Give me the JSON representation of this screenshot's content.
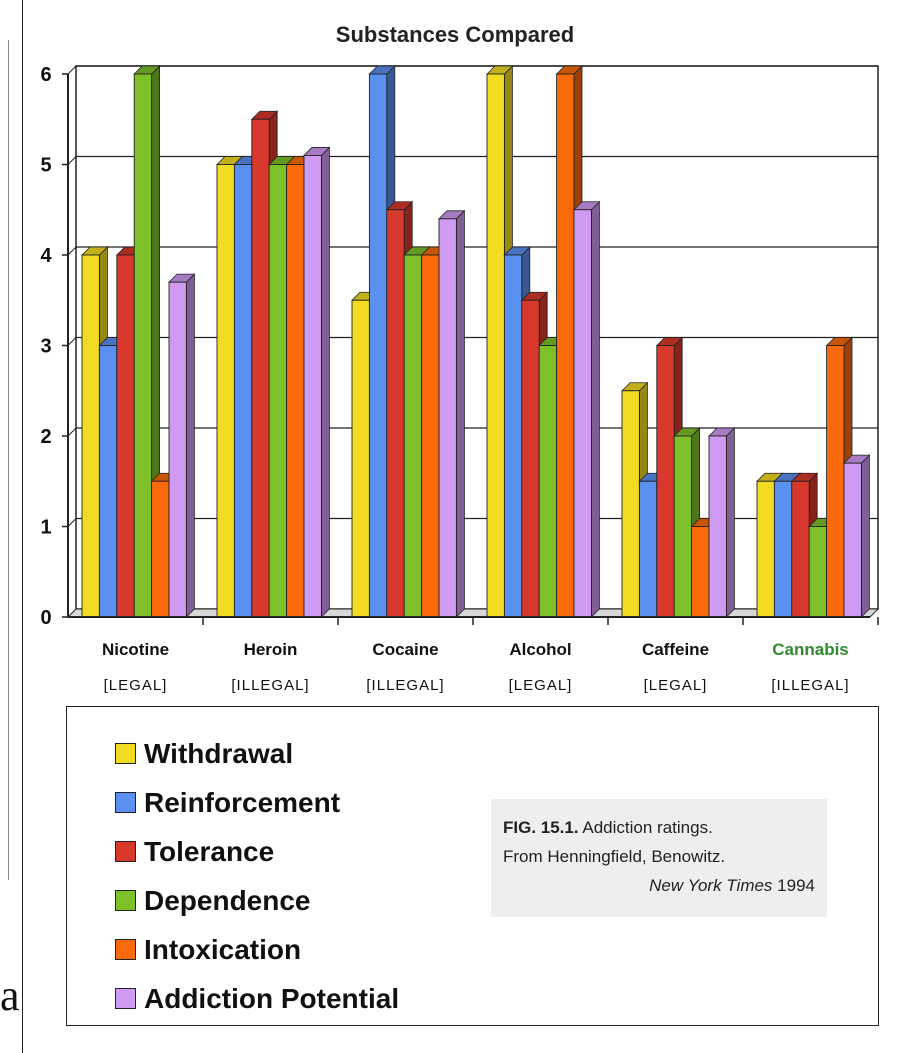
{
  "chart_data": {
    "type": "bar",
    "title": "Substances Compared",
    "xlabel": "",
    "ylabel": "",
    "ylim": [
      0,
      6
    ],
    "yticks": [
      "0",
      "1",
      "2",
      "3",
      "4",
      "5",
      "6"
    ],
    "grid": true,
    "categories": [
      "Nicotine",
      "Heroin",
      "Cocaine",
      "Alcohol",
      "Caffeine",
      "Cannabis"
    ],
    "category_status": [
      "[LEGAL]",
      "[ILLEGAL]",
      "[ILLEGAL]",
      "[LEGAL]",
      "[LEGAL]",
      "[ILLEGAL]"
    ],
    "category_colors": [
      "#111111",
      "#111111",
      "#111111",
      "#111111",
      "#111111",
      "#2e8b2e"
    ],
    "series": [
      {
        "name": "Withdrawal",
        "color": "#f2dc22",
        "values": [
          4,
          5,
          3.5,
          6,
          2.5,
          1.5
        ]
      },
      {
        "name": "Reinforcement",
        "color": "#5b8ff0",
        "values": [
          3,
          5,
          6,
          4,
          1.5,
          1.5
        ]
      },
      {
        "name": "Tolerance",
        "color": "#d9382c",
        "values": [
          4,
          5.5,
          4.5,
          3.5,
          3,
          1.5
        ]
      },
      {
        "name": "Dependence",
        "color": "#7ec02a",
        "values": [
          6,
          5,
          4,
          3,
          2,
          1
        ]
      },
      {
        "name": "Intoxication",
        "color": "#fb6a0a",
        "values": [
          1.5,
          5,
          4,
          6,
          1,
          3
        ]
      },
      {
        "name": "Addiction Potential",
        "color": "#cf9af2",
        "values": [
          3.7,
          5.1,
          4.4,
          4.5,
          2,
          1.7
        ]
      }
    ],
    "legend_position": "bottom"
  },
  "caption": {
    "fig_id": "FIG. 15.1.",
    "line1": "Addiction ratings.",
    "line2": "From Henningfield, Benowitz.",
    "publication": "New York Times",
    "year": "1994"
  },
  "stray_glyph": "a"
}
